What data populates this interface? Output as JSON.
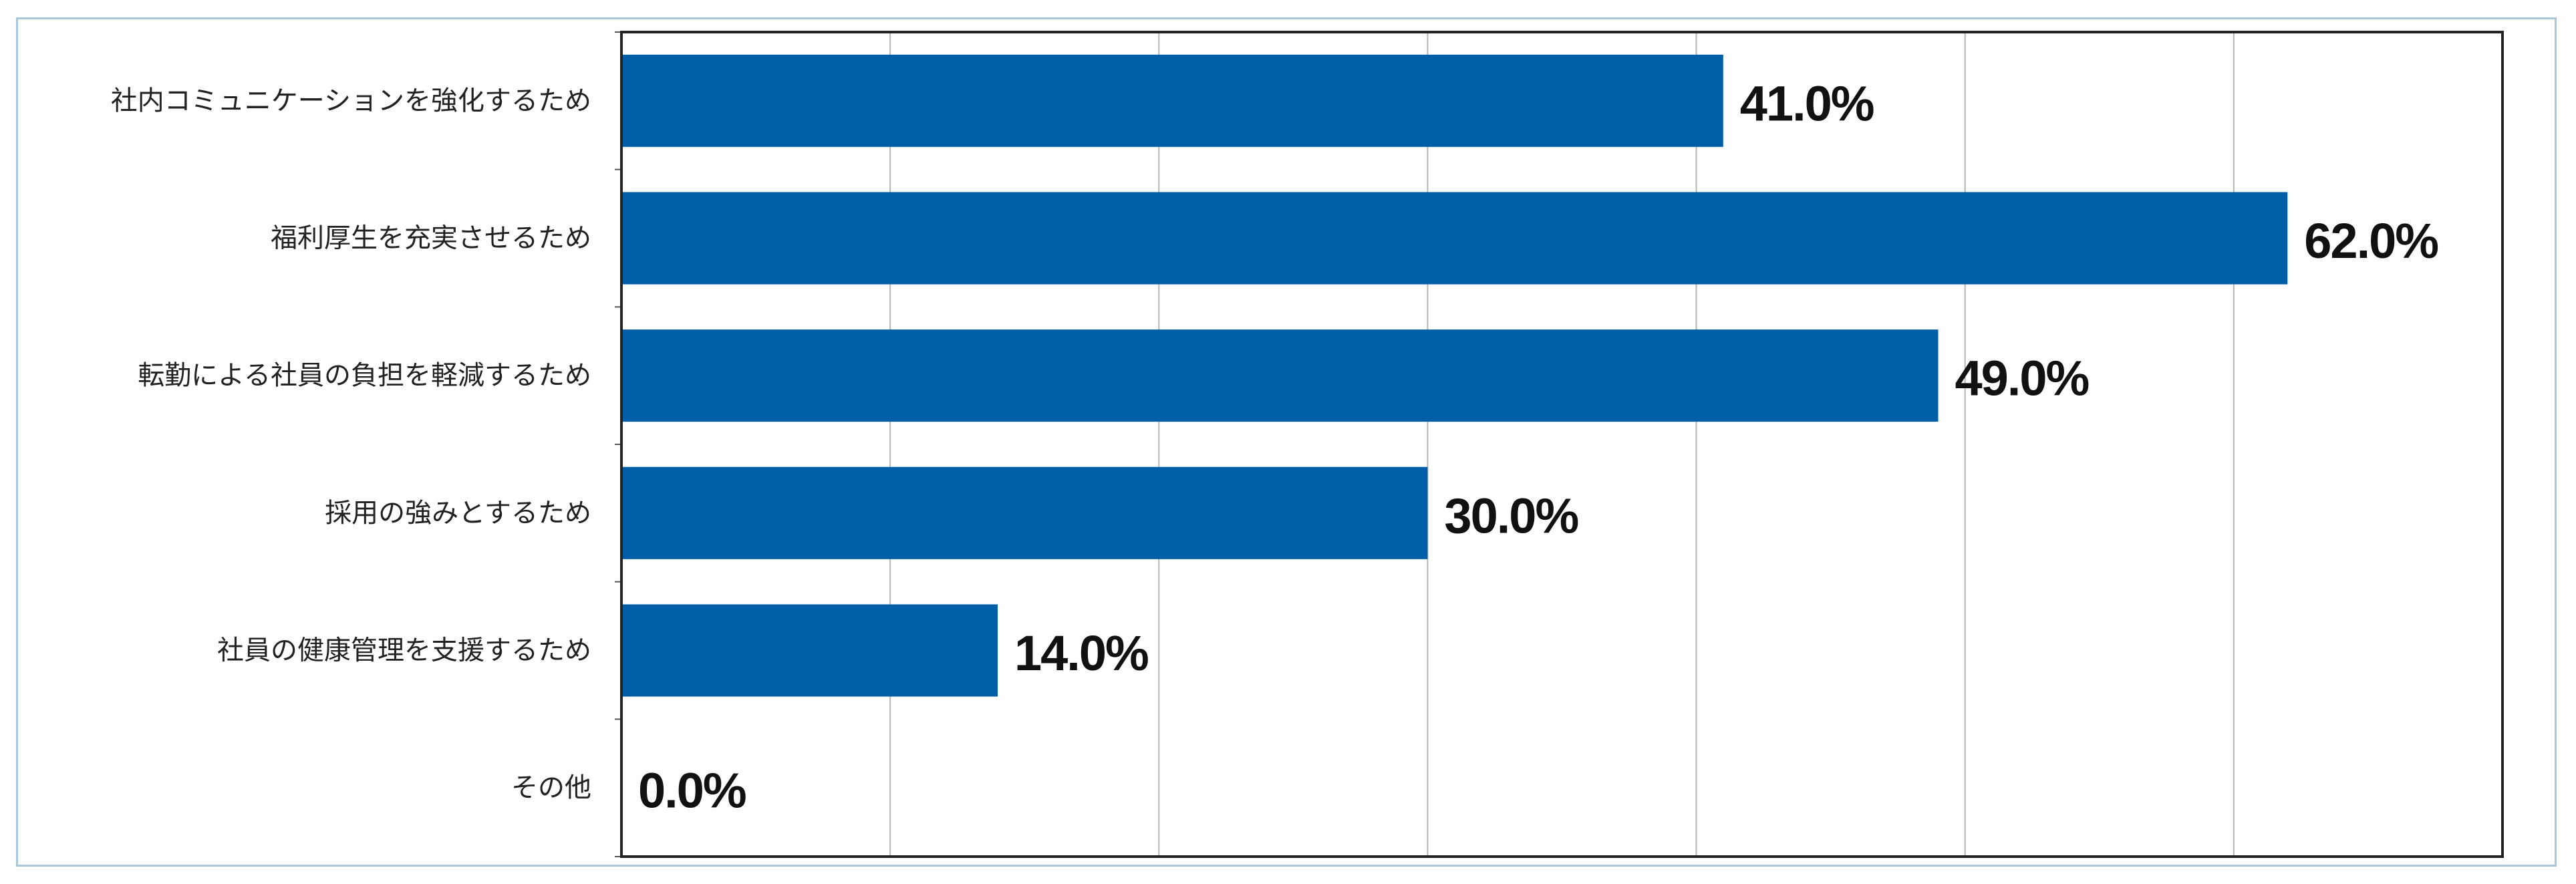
{
  "chart_data": {
    "type": "bar",
    "orientation": "horizontal",
    "categories": [
      "社内コミュニケーションを強化するため",
      "福利厚生を充実させるため",
      "転勤による社員の負担を軽減するため",
      "採用の強みとするため",
      "社員の健康管理を支援するため",
      "その他"
    ],
    "values": [
      41.0,
      62.0,
      49.0,
      30.0,
      14.0,
      0.0
    ],
    "value_labels": [
      "41.0%",
      "62.0%",
      "49.0%",
      "30.0%",
      "14.0%",
      "0.0%"
    ],
    "xlim": [
      0,
      70
    ],
    "grid": true,
    "bar_color": "#005ea6"
  }
}
